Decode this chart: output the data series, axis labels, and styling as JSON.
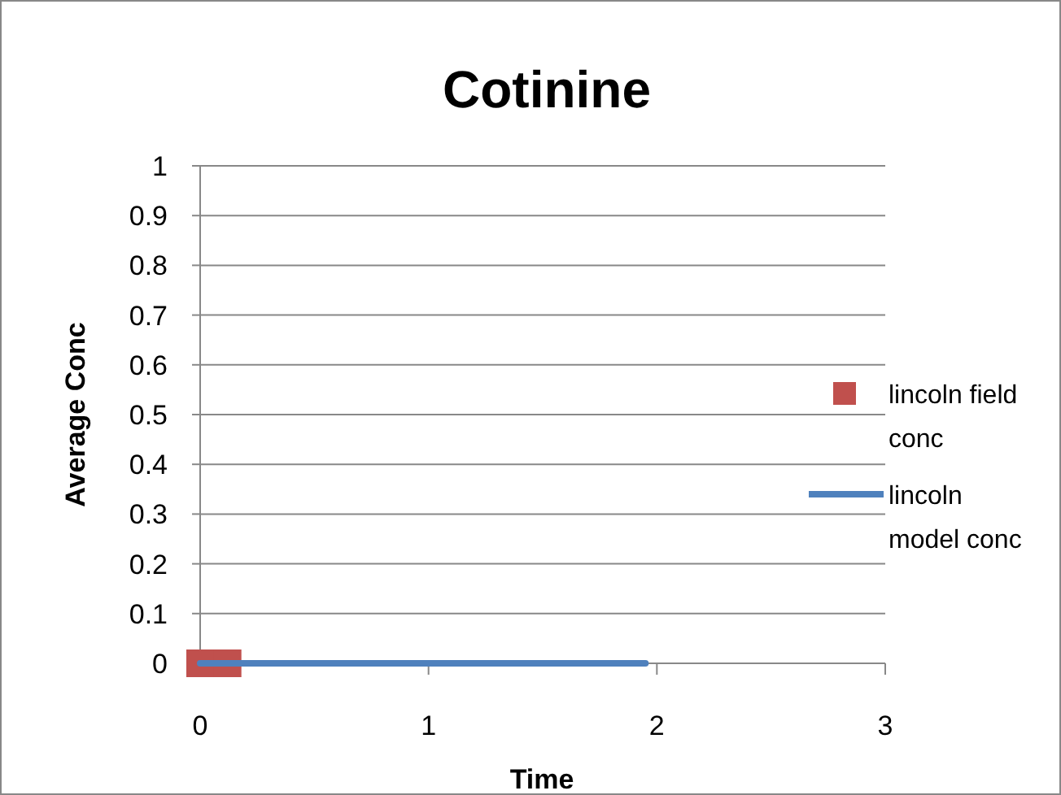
{
  "chart_data": {
    "type": "scatter",
    "title": "Cotinine",
    "xlabel": "Time",
    "ylabel": "Average Conc",
    "xlim": [
      0,
      3
    ],
    "xticks": [
      0,
      1,
      2,
      3
    ],
    "ylim": [
      0,
      1
    ],
    "yticks": [
      0,
      0.1,
      0.2,
      0.3,
      0.4,
      0.5,
      0.6,
      0.7,
      0.8,
      0.9,
      1
    ],
    "grid": "y",
    "legend": "right",
    "series": [
      {
        "name": "lincoln field conc",
        "marker": "square",
        "color": "#c0504d",
        "x": [
          0,
          0.12
        ],
        "values": [
          0,
          0
        ]
      },
      {
        "name": "lincoln model conc",
        "type": "line",
        "marker": "none",
        "color": "#4f81bd",
        "x": [
          0,
          1.95
        ],
        "values": [
          0,
          0
        ]
      }
    ]
  }
}
